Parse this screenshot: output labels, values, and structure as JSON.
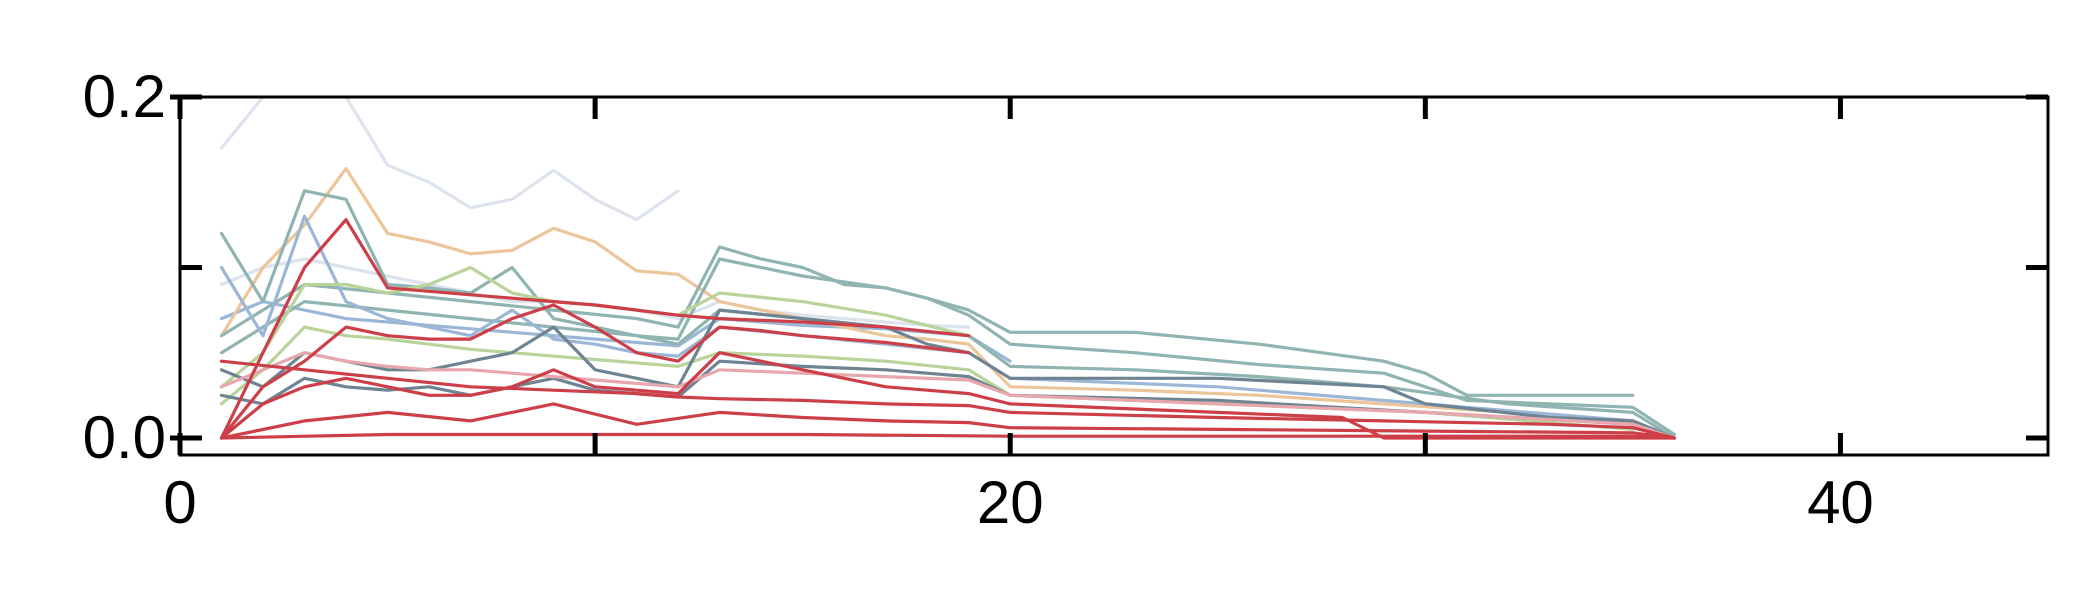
{
  "chart_data": {
    "type": "line",
    "title": "",
    "xlabel": "",
    "ylabel": "",
    "xlim": [
      0,
      45
    ],
    "ylim": [
      -0.01,
      0.2
    ],
    "grid": false,
    "legend": "none",
    "x_ticks": [
      0,
      20,
      40
    ],
    "x_tick_labels": [
      "0",
      "20",
      "40"
    ],
    "x_minor_ticks": [
      10,
      30
    ],
    "y_ticks": [
      0.0,
      0.2
    ],
    "y_tick_labels": [
      "0.0",
      "0.2"
    ],
    "y_minor_ticks": [
      0.1
    ],
    "colors": {
      "pale_blue": "#dde3ee",
      "steel_blue": "#9bb6d6",
      "teal": "#8fb4b1",
      "slate": "#6f8492",
      "green": "#b9d49a",
      "peach": "#ecc59a",
      "pink": "#e8a7ad",
      "red": "#cd3f48"
    },
    "series": [
      {
        "color": "#dde3ee",
        "x": [
          1,
          2,
          3,
          4,
          5,
          6,
          7,
          8,
          9,
          10,
          11,
          12
        ],
        "y": [
          0.17,
          0.2,
          0.2,
          0.2,
          0.16,
          0.15,
          0.135,
          0.14,
          0.157,
          0.14,
          0.128,
          0.145
        ]
      },
      {
        "color": "#dde3ee",
        "x": [
          1,
          2,
          3,
          4,
          5,
          6,
          7,
          8,
          9,
          10,
          11,
          12,
          13,
          14,
          15,
          16,
          17,
          18,
          19
        ],
        "y": [
          0.09,
          0.1,
          0.105,
          0.1,
          0.095,
          0.09,
          0.085,
          0.08,
          0.08,
          0.078,
          0.075,
          0.07,
          0.08,
          0.075,
          0.072,
          0.07,
          0.068,
          0.066,
          0.065
        ]
      },
      {
        "color": "#9bb6d6",
        "x": [
          1,
          2,
          3,
          4,
          5,
          6,
          7,
          8,
          9,
          10,
          11,
          12,
          13,
          14,
          15,
          16,
          17,
          18,
          19,
          20
        ],
        "y": [
          0.07,
          0.08,
          0.075,
          0.07,
          0.068,
          0.066,
          0.064,
          0.062,
          0.06,
          0.058,
          0.056,
          0.054,
          0.07,
          0.068,
          0.066,
          0.065,
          0.064,
          0.062,
          0.06,
          0.045
        ]
      },
      {
        "color": "#ecc59a",
        "x": [
          1,
          2,
          3,
          4,
          5,
          6,
          7,
          8,
          9,
          10,
          11,
          12,
          13,
          14,
          15,
          16,
          17,
          18,
          19,
          20,
          23,
          26,
          29,
          32,
          35,
          36
        ],
        "y": [
          0.06,
          0.1,
          0.125,
          0.158,
          0.12,
          0.115,
          0.108,
          0.11,
          0.123,
          0.115,
          0.098,
          0.096,
          0.08,
          0.075,
          0.07,
          0.065,
          0.06,
          0.058,
          0.055,
          0.03,
          0.028,
          0.025,
          0.02,
          0.015,
          0.01,
          0.0
        ]
      },
      {
        "color": "#8fb4b1",
        "x": [
          1,
          3,
          5,
          7,
          9,
          11,
          12,
          13,
          14,
          15,
          16,
          17,
          18,
          19,
          20,
          23,
          26,
          29,
          30,
          31,
          33,
          35
        ],
        "y": [
          0.06,
          0.09,
          0.085,
          0.08,
          0.075,
          0.07,
          0.065,
          0.112,
          0.105,
          0.1,
          0.09,
          0.088,
          0.082,
          0.075,
          0.062,
          0.062,
          0.055,
          0.045,
          0.038,
          0.025,
          0.025,
          0.025
        ]
      },
      {
        "color": "#8fb4b1",
        "x": [
          1,
          3,
          5,
          7,
          9,
          11,
          12,
          13,
          15,
          17,
          18,
          19,
          20,
          23,
          26,
          29,
          30,
          31,
          33,
          35,
          36
        ],
        "y": [
          0.05,
          0.08,
          0.075,
          0.07,
          0.065,
          0.06,
          0.058,
          0.105,
          0.095,
          0.088,
          0.082,
          0.072,
          0.055,
          0.05,
          0.043,
          0.038,
          0.03,
          0.022,
          0.02,
          0.018,
          0.002
        ]
      },
      {
        "color": "#8fb4b1",
        "x": [
          1,
          2,
          3,
          4,
          5,
          6,
          7,
          8,
          9,
          10,
          11,
          12,
          13,
          15,
          17,
          19,
          20,
          23,
          26,
          29,
          32,
          35,
          36
        ],
        "y": [
          0.12,
          0.08,
          0.145,
          0.14,
          0.09,
          0.088,
          0.085,
          0.1,
          0.07,
          0.065,
          0.06,
          0.055,
          0.075,
          0.07,
          0.065,
          0.06,
          0.042,
          0.04,
          0.036,
          0.03,
          0.02,
          0.015,
          0.0
        ]
      },
      {
        "color": "#9bb6d6",
        "x": [
          1,
          2,
          3,
          4,
          5,
          6,
          7,
          8,
          9,
          10,
          11,
          12,
          13,
          15,
          17,
          19,
          20,
          25,
          30,
          35
        ],
        "y": [
          0.1,
          0.06,
          0.13,
          0.08,
          0.07,
          0.065,
          0.06,
          0.075,
          0.058,
          0.055,
          0.05,
          0.048,
          0.065,
          0.06,
          0.055,
          0.05,
          0.035,
          0.03,
          0.02,
          0.01
        ]
      },
      {
        "color": "#b9d49a",
        "x": [
          1,
          2,
          3,
          4,
          5,
          6,
          7,
          8,
          9,
          10,
          11,
          12,
          13,
          15,
          17,
          19
        ],
        "y": [
          0.03,
          0.05,
          0.09,
          0.09,
          0.085,
          0.09,
          0.1,
          0.085,
          0.08,
          0.078,
          0.075,
          0.072,
          0.085,
          0.08,
          0.072,
          0.06
        ]
      },
      {
        "color": "#b9d49a",
        "x": [
          1,
          2,
          3,
          4,
          5,
          6,
          7,
          8,
          9,
          10,
          11,
          12,
          13,
          15,
          17,
          19,
          20,
          25,
          30,
          35
        ],
        "y": [
          0.02,
          0.04,
          0.065,
          0.06,
          0.058,
          0.055,
          0.052,
          0.05,
          0.048,
          0.046,
          0.044,
          0.042,
          0.05,
          0.048,
          0.045,
          0.04,
          0.025,
          0.02,
          0.015,
          0.005
        ]
      },
      {
        "color": "#6f8492",
        "x": [
          1,
          2,
          3,
          4,
          5,
          6,
          7,
          8,
          9,
          10,
          11,
          12,
          13,
          15,
          17,
          18,
          19,
          20,
          25,
          29,
          30,
          33,
          35,
          36
        ],
        "y": [
          0.04,
          0.03,
          0.05,
          0.045,
          0.04,
          0.04,
          0.045,
          0.05,
          0.065,
          0.04,
          0.035,
          0.03,
          0.075,
          0.07,
          0.065,
          0.055,
          0.05,
          0.035,
          0.035,
          0.03,
          0.02,
          0.012,
          0.01,
          0.0
        ]
      },
      {
        "color": "#6f8492",
        "x": [
          1,
          2,
          3,
          4,
          5,
          6,
          7,
          8,
          9,
          10,
          11,
          12,
          13,
          15,
          17,
          19,
          20,
          25,
          30,
          35
        ],
        "y": [
          0.025,
          0.02,
          0.035,
          0.03,
          0.028,
          0.03,
          0.025,
          0.03,
          0.035,
          0.028,
          0.026,
          0.024,
          0.045,
          0.042,
          0.04,
          0.036,
          0.025,
          0.022,
          0.015,
          0.008
        ]
      },
      {
        "color": "#e8a7ad",
        "x": [
          1,
          2,
          3,
          4,
          5,
          6,
          7,
          8,
          9,
          10,
          11,
          12,
          13,
          15,
          17,
          19,
          20,
          25,
          30,
          35,
          36
        ],
        "y": [
          0.03,
          0.04,
          0.05,
          0.045,
          0.042,
          0.04,
          0.04,
          0.038,
          0.036,
          0.034,
          0.032,
          0.03,
          0.04,
          0.038,
          0.036,
          0.034,
          0.025,
          0.02,
          0.015,
          0.008,
          0.0
        ]
      },
      {
        "color": "#cd3f48",
        "x": [
          1,
          2,
          3,
          4,
          5,
          6,
          7,
          8,
          9,
          10,
          11,
          12,
          13,
          15,
          17,
          19
        ],
        "y": [
          0.0,
          0.05,
          0.1,
          0.128,
          0.088,
          0.086,
          0.084,
          0.082,
          0.08,
          0.078,
          0.075,
          0.072,
          0.07,
          0.068,
          0.065,
          0.06
        ]
      },
      {
        "color": "#cd3f48",
        "x": [
          1,
          2,
          3,
          4,
          5,
          6,
          7,
          8,
          9,
          10,
          11,
          12,
          13,
          14,
          15,
          17,
          19
        ],
        "y": [
          0.0,
          0.03,
          0.045,
          0.065,
          0.06,
          0.058,
          0.058,
          0.07,
          0.078,
          0.065,
          0.05,
          0.045,
          0.065,
          0.063,
          0.06,
          0.056,
          0.05
        ]
      },
      {
        "color": "#cd3f48",
        "x": [
          1,
          3,
          5,
          7,
          9,
          11,
          12,
          13,
          15,
          17,
          19,
          20,
          25,
          29,
          33,
          35,
          36
        ],
        "y": [
          0.045,
          0.04,
          0.035,
          0.03,
          0.028,
          0.026,
          0.024,
          0.023,
          0.022,
          0.02,
          0.019,
          0.015,
          0.012,
          0.01,
          0.008,
          0.006,
          0.0
        ]
      },
      {
        "color": "#cd3f48",
        "x": [
          1,
          2,
          3,
          4,
          5,
          6,
          7,
          8,
          9,
          10,
          11,
          12,
          13,
          14,
          15,
          16,
          17,
          18,
          19,
          20,
          25,
          28,
          29,
          30,
          35,
          36
        ],
        "y": [
          0.0,
          0.02,
          0.03,
          0.035,
          0.03,
          0.025,
          0.025,
          0.03,
          0.04,
          0.03,
          0.028,
          0.026,
          0.05,
          0.045,
          0.04,
          0.035,
          0.03,
          0.028,
          0.026,
          0.02,
          0.015,
          0.012,
          0.0,
          0.0,
          0.0,
          0.0
        ]
      },
      {
        "color": "#cd3f48",
        "x": [
          1,
          3,
          5,
          7,
          9,
          11,
          13,
          15,
          17,
          19,
          20,
          25,
          30,
          35,
          36
        ],
        "y": [
          0.0,
          0.01,
          0.015,
          0.01,
          0.02,
          0.008,
          0.015,
          0.012,
          0.01,
          0.009,
          0.006,
          0.005,
          0.004,
          0.003,
          0.0
        ]
      },
      {
        "color": "#cd3f48",
        "x": [
          1,
          5,
          10,
          15,
          20,
          25,
          30,
          35,
          36
        ],
        "y": [
          0.0,
          0.002,
          0.002,
          0.002,
          0.001,
          0.001,
          0.001,
          0.001,
          0.0
        ]
      }
    ]
  }
}
